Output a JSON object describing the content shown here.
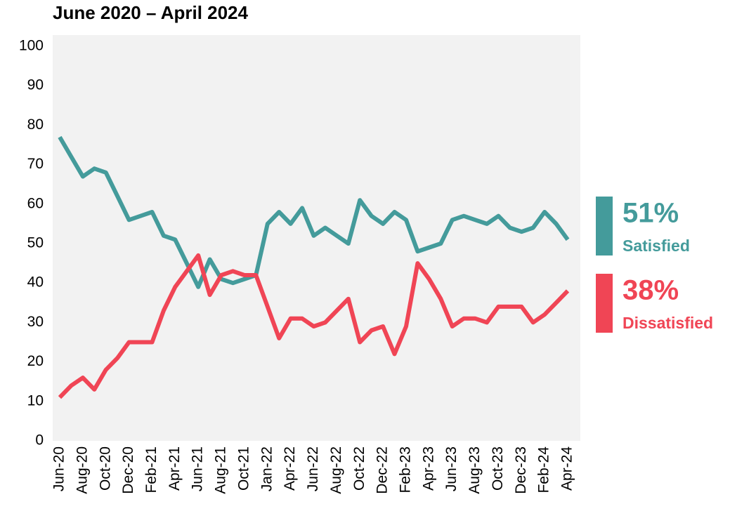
{
  "chart_data": {
    "type": "line",
    "title": "June 2020 – April 2024",
    "categories": [
      "Jun-20",
      null,
      "Aug-20",
      null,
      "Oct-20",
      null,
      "Dec-20",
      null,
      "Feb-21",
      null,
      "Apr-21",
      null,
      "Jun-21",
      null,
      "Aug-21",
      null,
      "Oct-21",
      null,
      "Jan-22",
      null,
      "Apr-22",
      null,
      "Jun-22",
      null,
      "Aug-22",
      null,
      "Oct-22",
      null,
      "Dec-22",
      null,
      "Feb-23",
      null,
      "Apr-23",
      null,
      "Jun-23",
      null,
      "Aug-23",
      null,
      "Oct-23",
      null,
      "Dec-23",
      null,
      "Feb-24",
      null,
      "Apr-24"
    ],
    "series": [
      {
        "name": "Satisfied",
        "color": "#449b9b",
        "values": [
          77,
          72,
          67,
          69,
          68,
          62,
          56,
          57,
          58,
          52,
          51,
          45,
          39,
          46,
          41,
          40,
          41,
          42,
          55,
          58,
          55,
          59,
          52,
          54,
          52,
          50,
          61,
          57,
          55,
          58,
          56,
          48,
          49,
          50,
          56,
          57,
          56,
          55,
          57,
          54,
          53,
          54,
          58,
          55,
          51
        ],
        "value_labels": [
          null,
          null,
          null,
          null,
          null,
          null,
          null,
          null,
          null,
          null,
          null,
          null,
          null,
          null,
          null,
          null,
          null,
          null,
          null,
          null,
          null,
          null,
          null,
          null,
          null,
          null,
          null,
          null,
          null,
          null,
          null,
          null,
          null,
          null,
          null,
          null,
          null,
          null,
          null,
          null,
          null,
          null,
          null,
          null,
          "51%"
        ]
      },
      {
        "name": "Dissatisfied",
        "color": "#f04555",
        "values": [
          11,
          14,
          16,
          13,
          18,
          21,
          25,
          25,
          25,
          33,
          39,
          43,
          47,
          37,
          42,
          43,
          42,
          42,
          34,
          26,
          31,
          31,
          29,
          30,
          33,
          36,
          25,
          28,
          29,
          22,
          29,
          45,
          41,
          36,
          29,
          31,
          31,
          30,
          34,
          34,
          34,
          30,
          32,
          35,
          38
        ],
        "value_labels": [
          null,
          null,
          null,
          null,
          null,
          null,
          null,
          null,
          null,
          null,
          null,
          null,
          null,
          null,
          null,
          null,
          null,
          null,
          null,
          null,
          null,
          null,
          null,
          null,
          null,
          null,
          null,
          null,
          null,
          null,
          null,
          null,
          null,
          null,
          null,
          null,
          null,
          null,
          null,
          null,
          null,
          null,
          null,
          null,
          "38%"
        ]
      }
    ],
    "ylim": [
      0,
      100
    ],
    "yticks": [
      0,
      10,
      20,
      30,
      40,
      50,
      60,
      70,
      80,
      90,
      100
    ],
    "grid": false
  }
}
